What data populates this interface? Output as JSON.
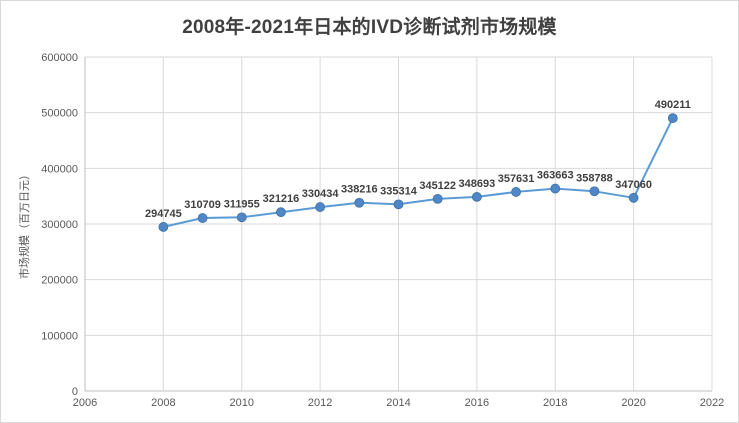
{
  "chart_data": {
    "type": "line",
    "title": "2008年-2021年日本的IVD诊断试剂市场规模",
    "xlabel": "",
    "ylabel": "市场规模（百万日元）",
    "x": [
      2008,
      2009,
      2010,
      2011,
      2012,
      2013,
      2014,
      2015,
      2016,
      2017,
      2018,
      2019,
      2020,
      2021
    ],
    "values": [
      294745,
      310709,
      311955,
      321216,
      330434,
      338216,
      335314,
      345122,
      348693,
      357631,
      363663,
      358788,
      347060,
      490211
    ],
    "xlim": [
      2006,
      2022
    ],
    "ylim": [
      0,
      600000
    ],
    "x_ticks": [
      2006,
      2008,
      2010,
      2012,
      2014,
      2016,
      2018,
      2020,
      2022
    ],
    "y_ticks": [
      0,
      100000,
      200000,
      300000,
      400000,
      500000,
      600000
    ],
    "grid": true,
    "legend": "none",
    "colors": {
      "line": "#5b9bd5",
      "marker_fill": "#4e86c8",
      "marker_edge": "#41719c",
      "grid": "#d9d9d9",
      "axis": "#bfbfbf",
      "tick_label": "#595959",
      "data_label": "#3f3f3f",
      "title": "#404040",
      "axis_title": "#595959"
    }
  }
}
